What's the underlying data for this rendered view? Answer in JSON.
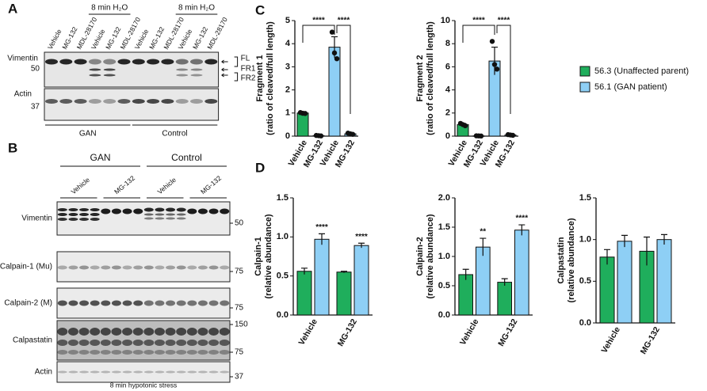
{
  "panel_labels": [
    "A",
    "B",
    "C",
    "D"
  ],
  "blot_a": {
    "conditions": [
      "8 min H₂O",
      "8 min H₂O"
    ],
    "lanes": [
      "Vehicle",
      "MG-132",
      "MDL-28170",
      "Vehicle",
      "MG-132",
      "MDL-28170",
      "Vehicle",
      "MG-132",
      "MDL-28170",
      "Vehicle",
      "MG-132",
      "MDL-28170"
    ],
    "rows": [
      {
        "name": "Vimentin",
        "markers": [
          50
        ]
      },
      {
        "name": "Actin",
        "markers": [
          37
        ]
      }
    ],
    "bands": [
      "FL",
      "FR1",
      "FR2"
    ],
    "groups": [
      "GAN",
      "Control"
    ]
  },
  "blot_b": {
    "groups": [
      "GAN",
      "Control"
    ],
    "lanes": [
      "Vehicle",
      "MG-132",
      "Vehicle",
      "MG-132"
    ],
    "rows": [
      {
        "name": "Vimentin",
        "markers": [
          50
        ]
      },
      {
        "name": "Calpain-1 (Mu)",
        "markers": [
          75
        ]
      },
      {
        "name": "Calpain-2 (M)",
        "markers": [
          75
        ]
      },
      {
        "name": "Calpastatin",
        "markers": [
          150,
          75
        ]
      },
      {
        "name": "Actin",
        "markers": [
          37
        ]
      }
    ],
    "caption": "8 min hypotonic stress"
  },
  "chart_data": [
    {
      "type": "bar",
      "ylabel": [
        "Fragment 1",
        "(ratio of cleaved/full length)"
      ],
      "categories": [
        "Vehicle",
        "MG-132",
        "Vehicle",
        "MG-132"
      ],
      "ylim": [
        0,
        5
      ],
      "yticks": [
        0,
        1,
        2,
        3,
        4,
        5
      ],
      "series": [
        {
          "name": "56.3 (Unaffected parent)",
          "color": "#1fae5c",
          "values": [
            1.0,
            0.02,
            null,
            null
          ],
          "errors": [
            0.04,
            0.01,
            null,
            null
          ],
          "points": [
            [
              1.02,
              0.99,
              0.98
            ],
            [
              0.03,
              0.02,
              0.01
            ],
            null,
            null
          ]
        },
        {
          "name": "56.1 (GAN patient)",
          "color": "#8ecff5",
          "values": [
            null,
            null,
            3.85,
            0.1
          ],
          "errors": [
            null,
            null,
            0.45,
            0.04
          ],
          "points": [
            null,
            null,
            [
              4.5,
              3.6,
              3.35
            ],
            [
              0.13,
              0.1,
              0.08
            ]
          ]
        }
      ],
      "annotations": [
        "****",
        "****"
      ]
    },
    {
      "type": "bar",
      "ylabel": [
        "Fragment 2",
        "(ratio of cleaved/full length)"
      ],
      "categories": [
        "Vehicle",
        "MG-132",
        "Vehicle",
        "MG-132"
      ],
      "ylim": [
        0,
        10
      ],
      "yticks": [
        0,
        2,
        4,
        6,
        8,
        10
      ],
      "series": [
        {
          "name": "56.3 (Unaffected parent)",
          "color": "#1fae5c",
          "values": [
            1.0,
            0.02,
            null,
            null
          ],
          "errors": [
            0.1,
            0.01,
            null,
            null
          ],
          "points": [
            [
              1.1,
              1.0,
              0.9
            ],
            [
              0.03,
              0.02,
              0.01
            ],
            null,
            null
          ]
        },
        {
          "name": "56.1 (GAN patient)",
          "color": "#8ecff5",
          "values": [
            null,
            null,
            6.5,
            0.1
          ],
          "errors": [
            null,
            null,
            1.2,
            0.05
          ],
          "points": [
            null,
            null,
            [
              8.2,
              6.2,
              5.8
            ],
            [
              0.13,
              0.1,
              0.07
            ]
          ]
        }
      ],
      "annotations": [
        "****",
        "****"
      ]
    },
    {
      "type": "bar",
      "ylabel": [
        "Calpain-1",
        "(relative abundance)"
      ],
      "categories": [
        "Vehicle",
        "MG-132"
      ],
      "ylim": [
        0,
        1.5
      ],
      "yticks": [
        {
          "value": 0,
          "label": "0.0"
        },
        0.5,
        {
          "value": 1,
          "label": "1.0"
        },
        1.5
      ],
      "series": [
        {
          "name": "56.3 (Unaffected parent)",
          "color": "#1fae5c",
          "values": [
            0.56,
            0.55
          ],
          "errors": [
            0.04,
            0.01
          ]
        },
        {
          "name": "56.1 (GAN patient)",
          "color": "#8ecff5",
          "values": [
            0.97,
            0.89
          ],
          "errors": [
            0.07,
            0.03
          ]
        }
      ],
      "significance": [
        "****",
        "****"
      ]
    },
    {
      "type": "bar",
      "ylabel": [
        "Calpain-2",
        "(relative abundance)"
      ],
      "categories": [
        "Vehicle",
        "MG-132"
      ],
      "ylim": [
        0,
        2
      ],
      "yticks": [
        {
          "value": 0,
          "label": "0.0"
        },
        0.5,
        {
          "value": 1,
          "label": "1.0"
        },
        1.5,
        {
          "value": 2,
          "label": "2.0"
        }
      ],
      "series": [
        {
          "name": "56.3 (Unaffected parent)",
          "color": "#1fae5c",
          "values": [
            0.69,
            0.56
          ],
          "errors": [
            0.09,
            0.06
          ]
        },
        {
          "name": "56.1 (GAN patient)",
          "color": "#8ecff5",
          "values": [
            1.16,
            1.45
          ],
          "errors": [
            0.15,
            0.09
          ]
        }
      ],
      "significance": [
        "**",
        "****"
      ]
    },
    {
      "type": "bar",
      "ylabel": [
        "Calpastatin",
        "(relative abundance)"
      ],
      "categories": [
        "Vehicle",
        "MG-132"
      ],
      "ylim": [
        0,
        1.5
      ],
      "yticks": [
        {
          "value": 0,
          "label": "0.0"
        },
        0.5,
        {
          "value": 1,
          "label": "1.0"
        },
        1.5
      ],
      "series": [
        {
          "name": "56.3 (Unaffected parent)",
          "color": "#1fae5c",
          "values": [
            0.79,
            0.86
          ],
          "errors": [
            0.09,
            0.17
          ]
        },
        {
          "name": "56.1 (GAN patient)",
          "color": "#8ecff5",
          "values": [
            0.98,
            1.0
          ],
          "errors": [
            0.07,
            0.06
          ]
        }
      ]
    }
  ]
}
